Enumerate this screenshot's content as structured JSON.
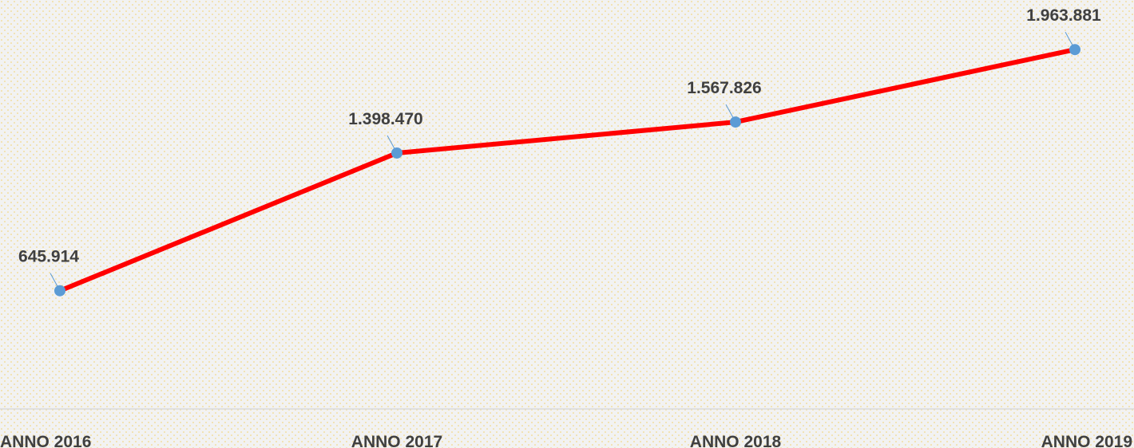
{
  "chart_data": {
    "type": "line",
    "categories": [
      "ANNO 2016",
      "ANNO 2017",
      "ANNO 2018",
      "ANNO 2019"
    ],
    "values": [
      645914,
      1398470,
      1567826,
      1963881
    ],
    "value_labels": [
      "645.914",
      "1.398.470",
      "1.567.826",
      "1.963.881"
    ],
    "color": "#ff0000",
    "marker_color": "#5b9bd5",
    "ylim": [
      0,
      2200000
    ]
  }
}
